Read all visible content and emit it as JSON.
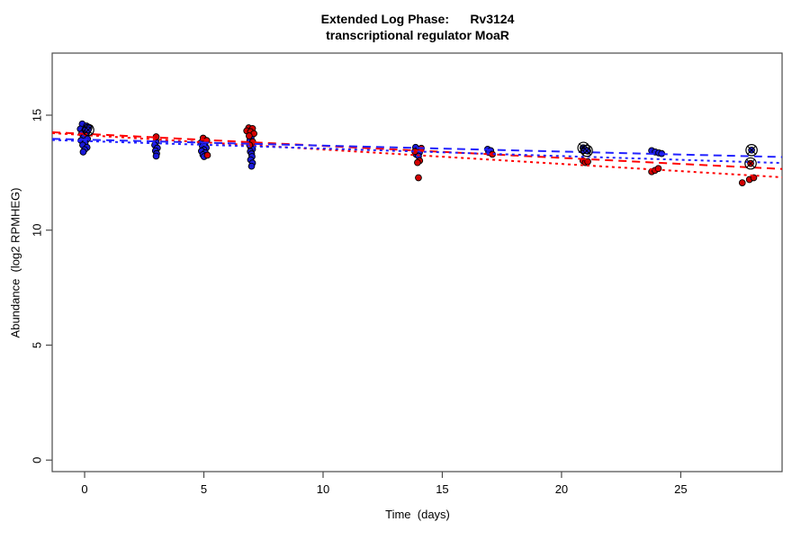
{
  "page": {
    "background": "#ffffff"
  },
  "chart_data": {
    "type": "scatter",
    "title_line1": "Extended Log Phase:      Rv3124",
    "title_line2": "transcriptional regulator MoaR",
    "xlabel": "Time  (days)",
    "ylabel": "Abundance  (log2 RPMHEG)",
    "xlim": [
      -1.36,
      29.25
    ],
    "ylim": [
      -0.5,
      17.7
    ],
    "x_ticks": [
      0,
      5,
      10,
      15,
      20,
      25
    ],
    "y_ticks": [
      0,
      5,
      10,
      15
    ],
    "grid": false,
    "legend": "none",
    "colors": {
      "blue_point": "#1a1ad9",
      "red_point": "#d40000",
      "blue_line": "#2222ff",
      "red_line": "#ff0000",
      "axis": "#4a4a4a",
      "marker_outline": "#000000"
    },
    "series": [
      {
        "name": "blue-replicates",
        "color": "#1a1ad9",
        "points": [
          [
            -0.1,
            14.62
          ],
          [
            0.08,
            14.53
          ],
          [
            0.18,
            14.44
          ],
          [
            -0.18,
            14.4
          ],
          [
            0.0,
            14.33
          ],
          [
            0.1,
            14.27
          ],
          [
            -0.12,
            14.2
          ],
          [
            0.05,
            14.12
          ],
          [
            -0.04,
            14.04
          ],
          [
            0.12,
            13.97
          ],
          [
            -0.15,
            13.9
          ],
          [
            0.02,
            13.8
          ],
          [
            -0.08,
            13.7
          ],
          [
            0.1,
            13.6
          ],
          [
            0.0,
            13.5
          ],
          [
            -0.06,
            13.4
          ],
          [
            3.0,
            13.84
          ],
          [
            2.94,
            13.7
          ],
          [
            3.05,
            13.57
          ],
          [
            2.97,
            13.45
          ],
          [
            3.02,
            13.33
          ],
          [
            3.0,
            13.22
          ],
          [
            4.88,
            13.8
          ],
          [
            5.04,
            13.74
          ],
          [
            4.94,
            13.65
          ],
          [
            5.1,
            13.58
          ],
          [
            5.0,
            13.5
          ],
          [
            4.9,
            13.44
          ],
          [
            5.06,
            13.36
          ],
          [
            4.96,
            13.28
          ],
          [
            5.01,
            13.2
          ],
          [
            6.98,
            14.02
          ],
          [
            6.93,
            13.9
          ],
          [
            7.03,
            13.78
          ],
          [
            6.96,
            13.62
          ],
          [
            7.04,
            13.52
          ],
          [
            6.95,
            13.42
          ],
          [
            7.0,
            13.32
          ],
          [
            7.02,
            13.2
          ],
          [
            6.96,
            13.06
          ],
          [
            7.04,
            12.92
          ],
          [
            7.0,
            12.78
          ],
          [
            13.88,
            13.6
          ],
          [
            14.08,
            13.53
          ],
          [
            13.94,
            13.46
          ],
          [
            14.04,
            13.38
          ],
          [
            13.9,
            13.3
          ],
          [
            14.0,
            13.22
          ],
          [
            16.9,
            13.52
          ],
          [
            17.03,
            13.46
          ],
          [
            16.95,
            13.38
          ],
          [
            20.9,
            13.58
          ],
          [
            21.0,
            13.5
          ],
          [
            21.1,
            13.44
          ],
          [
            23.78,
            13.46
          ],
          [
            23.93,
            13.4
          ],
          [
            24.08,
            13.36
          ],
          [
            24.2,
            13.33
          ]
        ]
      },
      {
        "name": "red-replicates",
        "color": "#d40000",
        "points": [
          [
            3.0,
            14.06
          ],
          [
            4.97,
            14.0
          ],
          [
            5.12,
            13.9
          ],
          [
            5.15,
            13.26
          ],
          [
            6.88,
            14.45
          ],
          [
            7.04,
            14.42
          ],
          [
            6.8,
            14.32
          ],
          [
            6.96,
            14.28
          ],
          [
            7.1,
            14.2
          ],
          [
            6.9,
            14.1
          ],
          [
            7.05,
            13.84
          ],
          [
            6.92,
            13.7
          ],
          [
            14.12,
            13.56
          ],
          [
            13.85,
            13.42
          ],
          [
            14.05,
            13.02
          ],
          [
            13.96,
            12.94
          ],
          [
            14.0,
            12.28
          ],
          [
            17.1,
            13.3
          ],
          [
            20.9,
            13.02
          ],
          [
            21.0,
            12.94
          ],
          [
            21.1,
            12.98
          ],
          [
            23.78,
            12.54
          ],
          [
            23.92,
            12.6
          ],
          [
            24.06,
            12.68
          ],
          [
            27.58,
            12.06
          ],
          [
            27.88,
            12.2
          ],
          [
            28.06,
            12.28
          ]
        ]
      }
    ],
    "circled_points": [
      {
        "day": 0.15,
        "value": 14.36,
        "color": "blue"
      },
      {
        "day": 20.92,
        "value": 13.58,
        "color": "blue"
      },
      {
        "day": 21.06,
        "value": 13.45,
        "color": "blue"
      },
      {
        "day": 27.97,
        "value": 13.48,
        "color": "blue"
      },
      {
        "day": 27.93,
        "value": 12.9,
        "color": "red"
      }
    ],
    "trendlines": [
      {
        "name": "red-fit-dashed",
        "color": "#ff0000",
        "dash": "9,6",
        "x": [
          -1.36,
          29.25
        ],
        "y": [
          14.26,
          12.66
        ]
      },
      {
        "name": "red-fit-dotted",
        "color": "#ff0000",
        "dash": "3,4",
        "x": [
          -1.36,
          29.25
        ],
        "y": [
          14.22,
          12.3
        ]
      },
      {
        "name": "blue-fit-dashed",
        "color": "#2222ff",
        "dash": "9,6",
        "x": [
          -1.36,
          29.25
        ],
        "y": [
          13.97,
          13.18
        ]
      },
      {
        "name": "blue-fit-dotted",
        "color": "#2222ff",
        "dash": "3,4",
        "x": [
          -1.36,
          29.25
        ],
        "y": [
          13.92,
          12.92
        ]
      }
    ]
  }
}
